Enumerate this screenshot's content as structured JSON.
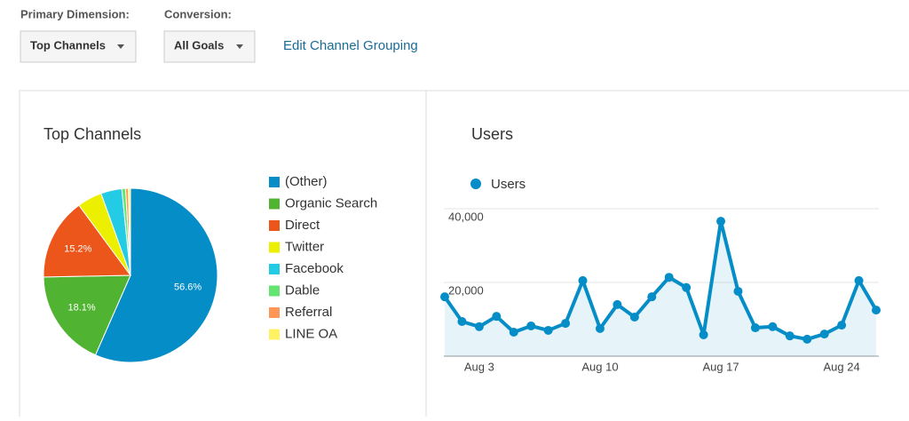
{
  "controls": {
    "primary_label": "Primary Dimension:",
    "primary_value": "Top Channels",
    "conversion_label": "Conversion:",
    "conversion_value": "All Goals",
    "link": "Edit Channel Grouping"
  },
  "chart_data": [
    {
      "type": "pie",
      "title": "Top Channels",
      "categories": [
        "(Other)",
        "Organic Search",
        "Direct",
        "Twitter",
        "Facebook",
        "Dable",
        "Referral",
        "LINE OA"
      ],
      "values": [
        56.6,
        18.1,
        15.2,
        4.6,
        3.9,
        0.7,
        0.5,
        0.4
      ],
      "value_labels": [
        "56.6%",
        "18.1%",
        "15.2%",
        null,
        null,
        null,
        null,
        null
      ],
      "colors": [
        "#058dc7",
        "#50b432",
        "#ed561b",
        "#edef00",
        "#24cbe5",
        "#64e572",
        "#ff9655",
        "#fff263"
      ]
    },
    {
      "type": "line",
      "title": "Users",
      "categories": [
        null,
        null,
        "Aug 3",
        null,
        null,
        null,
        null,
        null,
        null,
        "Aug 10",
        null,
        null,
        null,
        null,
        null,
        null,
        "Aug 17",
        null,
        null,
        null,
        null,
        null,
        null,
        "Aug 24",
        null,
        null
      ],
      "series": [
        {
          "name": "Users",
          "color": "#058dc7",
          "values": [
            16100,
            9400,
            8000,
            10800,
            6500,
            8200,
            7000,
            8900,
            20500,
            7500,
            14000,
            10600,
            16100,
            21400,
            18600,
            5800,
            36600,
            17600,
            7700,
            8000,
            5500,
            4600,
            6000,
            8400,
            20500,
            12500
          ]
        }
      ],
      "ylim": [
        0,
        40000
      ],
      "yticks": [
        {
          "value": 20000,
          "label": "20,000"
        },
        {
          "value": 40000,
          "label": "40,000"
        }
      ],
      "grid": true,
      "area": true
    }
  ]
}
